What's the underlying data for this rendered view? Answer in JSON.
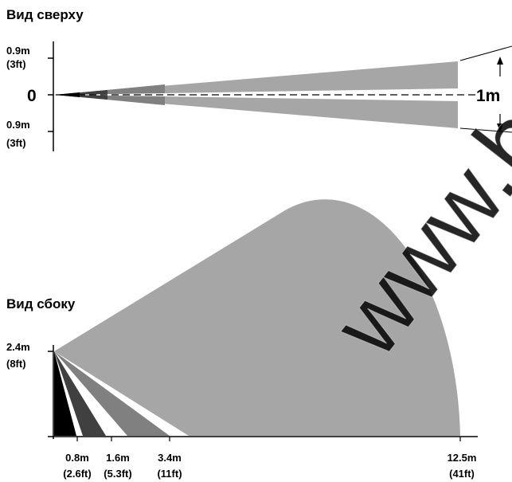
{
  "top_view": {
    "title": "Вид сверху",
    "labels": {
      "upper_value": "0.9m",
      "upper_imperial": "(3ft)",
      "center": "0",
      "lower_value": "0.9m",
      "lower_imperial": "(3ft)",
      "width": "1m"
    }
  },
  "side_view": {
    "title": "Вид сбоку",
    "height_value": "2.4m",
    "height_imperial": "(8ft)",
    "distances": [
      {
        "metric": "0.8m",
        "imperial": "(2.6ft)"
      },
      {
        "metric": "1.6m",
        "imperial": "(5.3ft)"
      },
      {
        "metric": "3.4m",
        "imperial": "(11ft)"
      },
      {
        "metric": "12.5m",
        "imperial": "(41ft)"
      }
    ]
  },
  "watermark": "www.b",
  "colors": {
    "zone_light": "#a6a6a6",
    "zone_mid": "#808080",
    "zone_dark": "#404040",
    "zone_black": "#000000"
  }
}
